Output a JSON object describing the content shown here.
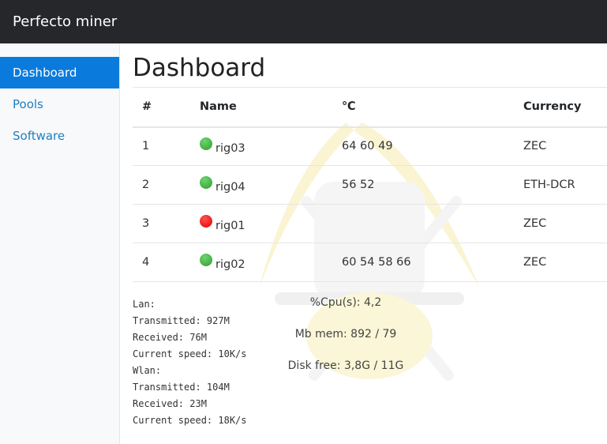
{
  "app": {
    "title": "Perfecto miner"
  },
  "sidebar": {
    "items": [
      {
        "label": "Dashboard",
        "active": true
      },
      {
        "label": "Pools"
      },
      {
        "label": "Software"
      }
    ]
  },
  "main": {
    "title": "Dashboard",
    "table": {
      "headers": [
        "#",
        "Name",
        "℃",
        "Currency"
      ],
      "rows": [
        {
          "n": "1",
          "name": "rig03",
          "status": "online",
          "temps": "64 60 49",
          "currency": "ZEC"
        },
        {
          "n": "2",
          "name": "rig04",
          "status": "online",
          "temps": "56 52",
          "currency": "ETH-DCR"
        },
        {
          "n": "3",
          "name": "rig01",
          "status": "offline",
          "temps": "",
          "currency": "ZEC"
        },
        {
          "n": "4",
          "name": "rig02",
          "status": "online",
          "temps": "60 54 58 66",
          "currency": "ZEC"
        }
      ]
    },
    "network": [
      "Lan:",
      "Transmitted: 927M",
      "Received: 76M",
      "Current speed: 10K/s",
      "Wlan:",
      "Transmitted: 104M",
      "Received: 23M",
      "Current speed: 18K/s"
    ],
    "system": {
      "cpu": "%Cpu(s): 4,2",
      "mem": "Mb mem: 892 / 79",
      "disk": "Disk free: 3,8G / 11G"
    }
  },
  "colors": {
    "online": "#2e9e2e",
    "offline": "#e00000",
    "accent": "#0a7bdc",
    "header": "#25272a"
  }
}
